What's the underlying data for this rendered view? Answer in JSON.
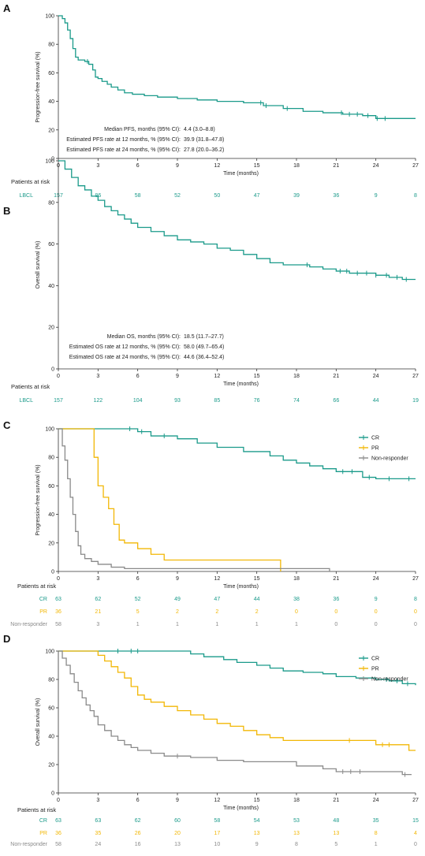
{
  "colors": {
    "green": "#1a9a8a",
    "yellow": "#f2b705",
    "gray": "#8a8a8a",
    "axis": "#333333",
    "text": "#222222"
  },
  "common": {
    "xlabel": "Time (months)",
    "xticks": [
      0,
      3,
      6,
      9,
      12,
      15,
      18,
      21,
      24,
      27
    ],
    "yticks": [
      0,
      20,
      40,
      60,
      80,
      100
    ],
    "risk_title": "Patients at risk"
  },
  "chart_data": [
    {
      "panel": "A",
      "type": "line",
      "ylabel": "Progression-free survival (%)",
      "xlim": [
        0,
        27
      ],
      "ylim": [
        0,
        100
      ],
      "stats": [
        {
          "label": "Median PFS, months (95% CI):",
          "value": "4.4 (3.0–8.8)"
        },
        {
          "label": "Estimated PFS rate at 12 months, % (95% CI):",
          "value": "39.9 (31.8–47.8)"
        },
        {
          "label": "Estimated PFS rate at 24 months, % (95% CI):",
          "value": "27.8 (20.0–36.2)"
        }
      ],
      "series": [
        {
          "key": "lbcl",
          "color": "green",
          "x": [
            0,
            0.3,
            0.5,
            0.7,
            0.9,
            1.1,
            1.3,
            1.5,
            2.0,
            2.3,
            2.6,
            2.8,
            3.0,
            3.3,
            3.7,
            4.0,
            4.5,
            5.0,
            5.6,
            6.5,
            7.5,
            9.0,
            10.5,
            12.0,
            14.0,
            15.5,
            17.0,
            18.5,
            20.0,
            21.5,
            23.0,
            24.0,
            27.0
          ],
          "y": [
            100,
            98,
            95,
            90,
            84,
            77,
            71,
            69,
            68,
            66,
            62,
            57,
            56,
            54,
            52,
            50,
            48,
            46,
            45,
            44,
            43,
            42,
            41,
            40,
            39,
            37,
            35,
            33,
            32,
            31,
            30,
            28,
            28
          ],
          "censor_x": [
            2.2,
            15.3,
            15.7,
            17.3,
            21.4,
            22.0,
            22.6,
            23.4,
            24.1,
            24.7
          ]
        }
      ],
      "risk": [
        {
          "name": "LBCL",
          "color": "green",
          "values": [
            157,
            86,
            58,
            52,
            50,
            47,
            39,
            36,
            9,
            8
          ]
        }
      ]
    },
    {
      "panel": "B",
      "type": "line",
      "ylabel": "Overall survival (%)",
      "xlim": [
        0,
        27
      ],
      "ylim": [
        0,
        100
      ],
      "stats": [
        {
          "label": "Median OS, months (95% CI):",
          "value": "18.5 (11.7–27.7)"
        },
        {
          "label": "Estimated OS rate at 12 months, % (95% CI):",
          "value": "58.0 (49.7–65.4)"
        },
        {
          "label": "Estimated OS rate at 24 months, % (95% CI):",
          "value": "44.6 (36.4–52.4)"
        }
      ],
      "series": [
        {
          "key": "lbcl",
          "color": "green",
          "x": [
            0,
            0.5,
            1.0,
            1.5,
            2.0,
            2.5,
            3.0,
            3.5,
            4.0,
            4.5,
            5.0,
            5.5,
            6.0,
            7.0,
            8.0,
            9.0,
            10.0,
            11.0,
            12.0,
            13.0,
            14.0,
            15.0,
            16.0,
            17.0,
            18.0,
            19.0,
            20.0,
            21.0,
            22.0,
            23.0,
            24.0,
            25.0,
            26.0,
            27.0
          ],
          "y": [
            100,
            96,
            92,
            88,
            86,
            83,
            81,
            78,
            76,
            74,
            72,
            70,
            68,
            66,
            64,
            62,
            61,
            60,
            58,
            57,
            55,
            53,
            51,
            50,
            50,
            49,
            48,
            47,
            46,
            46,
            45,
            44,
            43,
            43
          ],
          "censor_x": [
            18.8,
            21.3,
            21.8,
            22.6,
            23.3,
            24.0,
            24.8,
            25.6,
            26.3
          ]
        }
      ],
      "risk": [
        {
          "name": "LBCL",
          "color": "green",
          "values": [
            157,
            122,
            104,
            93,
            85,
            76,
            74,
            66,
            44,
            19
          ]
        }
      ]
    },
    {
      "panel": "C",
      "type": "line",
      "ylabel": "Progression-free survival (%)",
      "xlim": [
        0,
        27
      ],
      "ylim": [
        0,
        100
      ],
      "legend_position": "top-right",
      "series": [
        {
          "key": "cr",
          "name": "CR",
          "color": "green",
          "x": [
            0,
            6.0,
            7.0,
            9.0,
            10.5,
            12.0,
            14.0,
            16.0,
            17.0,
            18.0,
            19.0,
            20.0,
            21.0,
            23.0,
            24.0,
            27.0
          ],
          "y": [
            100,
            98,
            95,
            93,
            90,
            87,
            84,
            81,
            78,
            76,
            74,
            72,
            70,
            66,
            65,
            65
          ],
          "censor_x": [
            5.4,
            6.3,
            8.0,
            21.5,
            22.2,
            23.5,
            25.0,
            26.5
          ]
        },
        {
          "key": "pr",
          "name": "PR",
          "color": "yellow",
          "x": [
            0,
            2.7,
            3.0,
            3.4,
            3.8,
            4.2,
            4.6,
            5.0,
            6.0,
            7.0,
            8.0,
            15.0,
            16.8
          ],
          "y": [
            100,
            80,
            60,
            52,
            44,
            33,
            22,
            20,
            16,
            12,
            8,
            8,
            0
          ],
          "censor_x": []
        },
        {
          "key": "nr",
          "name": "Non-responder",
          "color": "gray",
          "x": [
            0,
            0.3,
            0.5,
            0.7,
            0.9,
            1.1,
            1.3,
            1.5,
            1.7,
            2.0,
            2.5,
            3.0,
            4.0,
            5.0,
            20.5
          ],
          "y": [
            100,
            88,
            78,
            65,
            52,
            40,
            28,
            18,
            12,
            9,
            7,
            5,
            3,
            2,
            0
          ],
          "censor_x": []
        }
      ],
      "risk": [
        {
          "name": "CR",
          "color": "green",
          "values": [
            63,
            62,
            52,
            49,
            47,
            44,
            38,
            36,
            9,
            8
          ]
        },
        {
          "name": "PR",
          "color": "yellow",
          "values": [
            36,
            21,
            5,
            2,
            2,
            2,
            0,
            0,
            0,
            0
          ]
        },
        {
          "name": "Non-responder",
          "color": "gray",
          "values": [
            58,
            3,
            1,
            1,
            1,
            1,
            1,
            0,
            0,
            0
          ]
        }
      ]
    },
    {
      "panel": "D",
      "type": "line",
      "ylabel": "Overall survival (%)",
      "xlim": [
        0,
        27
      ],
      "ylim": [
        0,
        100
      ],
      "legend_position": "right",
      "series": [
        {
          "key": "cr",
          "name": "CR",
          "color": "green",
          "x": [
            0,
            10.0,
            11.0,
            12.5,
            13.5,
            15.0,
            16.0,
            17.0,
            18.5,
            20.0,
            21.0,
            22.5,
            24.0,
            25.0,
            26.0,
            27.0
          ],
          "y": [
            100,
            98,
            96,
            94,
            92,
            90,
            88,
            86,
            85,
            84,
            82,
            81,
            80,
            79,
            77,
            76
          ],
          "censor_x": [
            4.5,
            5.5,
            6.0,
            24.8,
            25.6,
            26.4
          ]
        },
        {
          "key": "pr",
          "name": "PR",
          "color": "yellow",
          "x": [
            0,
            3.0,
            3.5,
            4.0,
            4.5,
            5.0,
            5.5,
            6.0,
            6.5,
            7.0,
            8.0,
            9.0,
            10.0,
            11.0,
            12.0,
            13.0,
            14.0,
            15.0,
            16.0,
            17.0,
            22.5,
            24.0,
            26.5,
            27.0
          ],
          "y": [
            100,
            97,
            93,
            89,
            85,
            81,
            75,
            69,
            66,
            64,
            61,
            58,
            55,
            52,
            49,
            47,
            44,
            41,
            39,
            37,
            37,
            34,
            30,
            30
          ],
          "censor_x": [
            22.0,
            24.5,
            25.0
          ]
        },
        {
          "key": "nr",
          "name": "Non-responder",
          "color": "gray",
          "x": [
            0,
            0.3,
            0.6,
            0.9,
            1.2,
            1.5,
            1.8,
            2.1,
            2.4,
            2.7,
            3.0,
            3.5,
            4.0,
            4.5,
            5.0,
            5.5,
            6.0,
            7.0,
            8.0,
            10.0,
            12.0,
            14.0,
            18.0,
            20.0,
            21.0,
            26.0,
            26.7
          ],
          "y": [
            100,
            95,
            90,
            84,
            78,
            72,
            67,
            62,
            58,
            54,
            48,
            44,
            40,
            37,
            34,
            32,
            30,
            28,
            26,
            25,
            23,
            22,
            19,
            17,
            15,
            13,
            13
          ],
          "censor_x": [
            9.0,
            21.5,
            22.1,
            22.8,
            26.2
          ]
        }
      ],
      "risk": [
        {
          "name": "CR",
          "color": "green",
          "values": [
            63,
            63,
            62,
            60,
            58,
            54,
            53,
            48,
            35,
            15
          ]
        },
        {
          "name": "PR",
          "color": "yellow",
          "values": [
            36,
            35,
            26,
            20,
            17,
            13,
            13,
            13,
            8,
            4
          ]
        },
        {
          "name": "Non-responder",
          "color": "gray",
          "values": [
            58,
            24,
            16,
            13,
            10,
            9,
            8,
            5,
            1,
            0
          ]
        }
      ]
    }
  ]
}
